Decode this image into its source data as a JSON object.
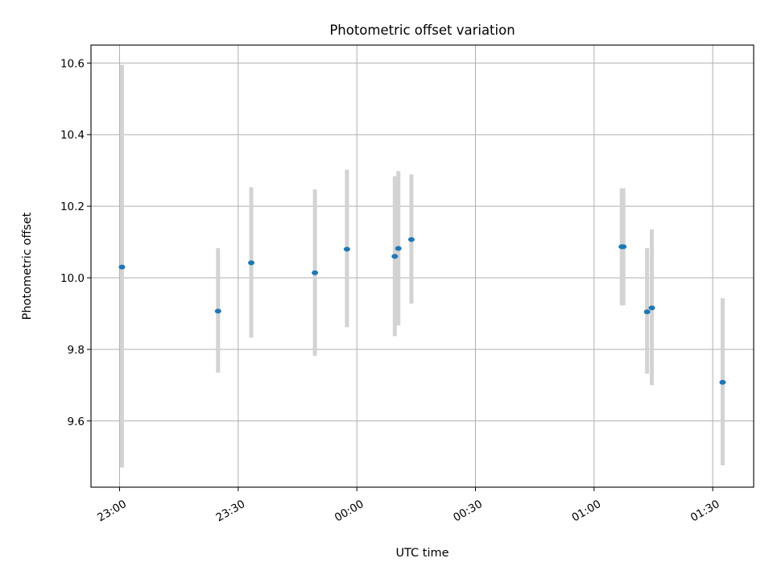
{
  "chart_data": {
    "type": "scatter",
    "title": "Photometric offset variation",
    "xlabel": "UTC time",
    "ylabel": "Photometric offset",
    "x_ticks": [
      "23:00",
      "23:30",
      "00:00",
      "00:30",
      "01:00",
      "01:30"
    ],
    "y_ticks": [
      "9.6",
      "9.8",
      "10.0",
      "10.2",
      "10.4",
      "10.6"
    ],
    "grid": true,
    "series": [
      {
        "points": [
          {
            "t": "23:00:36",
            "y": 10.03,
            "ylo": 9.47,
            "yhi": 10.595
          },
          {
            "t": "23:24:54",
            "y": 9.907,
            "ylo": 9.735,
            "yhi": 10.083
          },
          {
            "t": "23:33:18",
            "y": 10.042,
            "ylo": 9.833,
            "yhi": 10.253
          },
          {
            "t": "23:49:24",
            "y": 10.014,
            "ylo": 9.782,
            "yhi": 10.247
          },
          {
            "t": "23:57:30",
            "y": 10.08,
            "ylo": 9.862,
            "yhi": 10.302
          },
          {
            "t": "00:09:36",
            "y": 10.06,
            "ylo": 9.837,
            "yhi": 10.284
          },
          {
            "t": "00:10:30",
            "y": 10.082,
            "ylo": 9.867,
            "yhi": 10.298
          },
          {
            "t": "00:13:48",
            "y": 10.107,
            "ylo": 9.928,
            "yhi": 10.289
          },
          {
            "t": "01:07:00",
            "y": 10.087,
            "ylo": 9.923,
            "yhi": 10.25
          },
          {
            "t": "01:07:24",
            "y": 10.087,
            "ylo": 9.923,
            "yhi": 10.25
          },
          {
            "t": "01:13:24",
            "y": 9.905,
            "ylo": 9.732,
            "yhi": 10.083
          },
          {
            "t": "01:14:36",
            "y": 9.916,
            "ylo": 9.7,
            "yhi": 10.135
          },
          {
            "t": "01:32:30",
            "y": 9.708,
            "ylo": 9.476,
            "yhi": 9.943
          }
        ]
      }
    ]
  },
  "colors": {
    "point": "#1f77b4",
    "errorbar": "#d3d3d3",
    "grid": "#b0b0b0"
  }
}
